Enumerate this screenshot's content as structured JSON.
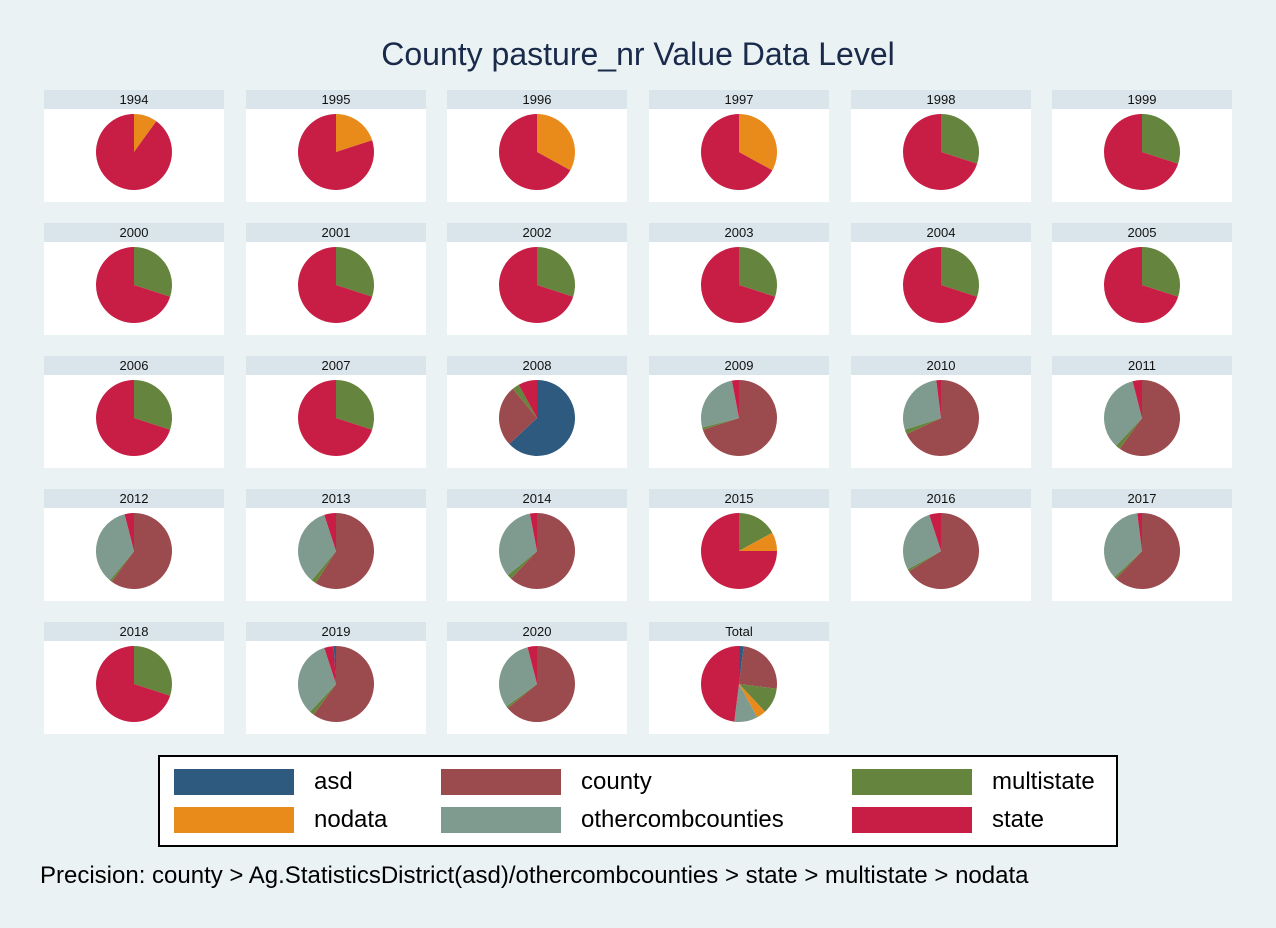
{
  "title": "County pasture_nr Value Data Level",
  "note": "Precision: county > Ag.StatisticsDistrict(asd)/othercombcounties > state > multistate > nodata",
  "chart_data": {
    "type": "pie",
    "title": "County pasture_nr Value Data Level",
    "categories": [
      "asd",
      "county",
      "multistate",
      "nodata",
      "othercombcounties",
      "state"
    ],
    "colors": {
      "asd": "#2e5a80",
      "county": "#9b4a4d",
      "multistate": "#65843d",
      "nodata": "#e88b1b",
      "othercombcounties": "#7f9b8f",
      "state": "#c81e45"
    },
    "legend": {
      "position": "bottom",
      "items": [
        "asd",
        "county",
        "multistate",
        "nodata",
        "othercombcounties",
        "state"
      ]
    },
    "panels": [
      {
        "label": "1994",
        "slices": [
          {
            "category": "nodata",
            "value": 10
          },
          {
            "category": "state",
            "value": 90
          }
        ]
      },
      {
        "label": "1995",
        "slices": [
          {
            "category": "nodata",
            "value": 20
          },
          {
            "category": "state",
            "value": 80
          }
        ]
      },
      {
        "label": "1996",
        "slices": [
          {
            "category": "nodata",
            "value": 33
          },
          {
            "category": "state",
            "value": 67
          }
        ]
      },
      {
        "label": "1997",
        "slices": [
          {
            "category": "nodata",
            "value": 33
          },
          {
            "category": "state",
            "value": 67
          }
        ]
      },
      {
        "label": "1998",
        "slices": [
          {
            "category": "multistate",
            "value": 30
          },
          {
            "category": "state",
            "value": 70
          }
        ]
      },
      {
        "label": "1999",
        "slices": [
          {
            "category": "multistate",
            "value": 30
          },
          {
            "category": "state",
            "value": 70
          }
        ]
      },
      {
        "label": "2000",
        "slices": [
          {
            "category": "multistate",
            "value": 30
          },
          {
            "category": "state",
            "value": 70
          }
        ]
      },
      {
        "label": "2001",
        "slices": [
          {
            "category": "multistate",
            "value": 30
          },
          {
            "category": "state",
            "value": 70
          }
        ]
      },
      {
        "label": "2002",
        "slices": [
          {
            "category": "multistate",
            "value": 30
          },
          {
            "category": "state",
            "value": 70
          }
        ]
      },
      {
        "label": "2003",
        "slices": [
          {
            "category": "multistate",
            "value": 30
          },
          {
            "category": "state",
            "value": 70
          }
        ]
      },
      {
        "label": "2004",
        "slices": [
          {
            "category": "multistate",
            "value": 30
          },
          {
            "category": "state",
            "value": 70
          }
        ]
      },
      {
        "label": "2005",
        "slices": [
          {
            "category": "multistate",
            "value": 30
          },
          {
            "category": "state",
            "value": 70
          }
        ]
      },
      {
        "label": "2006",
        "slices": [
          {
            "category": "multistate",
            "value": 30
          },
          {
            "category": "state",
            "value": 70
          }
        ]
      },
      {
        "label": "2007",
        "slices": [
          {
            "category": "multistate",
            "value": 30
          },
          {
            "category": "state",
            "value": 70
          }
        ]
      },
      {
        "label": "2008",
        "slices": [
          {
            "category": "asd",
            "value": 63
          },
          {
            "category": "county",
            "value": 26
          },
          {
            "category": "multistate",
            "value": 3
          },
          {
            "category": "state",
            "value": 8
          }
        ]
      },
      {
        "label": "2009",
        "slices": [
          {
            "category": "county",
            "value": 70
          },
          {
            "category": "multistate",
            "value": 1
          },
          {
            "category": "othercombcounties",
            "value": 26
          },
          {
            "category": "state",
            "value": 3
          }
        ]
      },
      {
        "label": "2010",
        "slices": [
          {
            "category": "county",
            "value": 68
          },
          {
            "category": "multistate",
            "value": 2
          },
          {
            "category": "othercombcounties",
            "value": 28
          },
          {
            "category": "state",
            "value": 2
          }
        ]
      },
      {
        "label": "2011",
        "slices": [
          {
            "category": "county",
            "value": 60
          },
          {
            "category": "multistate",
            "value": 2
          },
          {
            "category": "othercombcounties",
            "value": 34
          },
          {
            "category": "state",
            "value": 4
          }
        ]
      },
      {
        "label": "2012",
        "slices": [
          {
            "category": "county",
            "value": 60
          },
          {
            "category": "multistate",
            "value": 1
          },
          {
            "category": "othercombcounties",
            "value": 35
          },
          {
            "category": "state",
            "value": 4
          }
        ]
      },
      {
        "label": "2013",
        "slices": [
          {
            "category": "county",
            "value": 59
          },
          {
            "category": "multistate",
            "value": 2
          },
          {
            "category": "othercombcounties",
            "value": 34
          },
          {
            "category": "state",
            "value": 5
          }
        ]
      },
      {
        "label": "2014",
        "slices": [
          {
            "category": "county",
            "value": 62
          },
          {
            "category": "multistate",
            "value": 2
          },
          {
            "category": "othercombcounties",
            "value": 33
          },
          {
            "category": "state",
            "value": 3
          }
        ]
      },
      {
        "label": "2015",
        "slices": [
          {
            "category": "multistate",
            "value": 17
          },
          {
            "category": "nodata",
            "value": 8
          },
          {
            "category": "state",
            "value": 75
          }
        ]
      },
      {
        "label": "2016",
        "slices": [
          {
            "category": "county",
            "value": 66
          },
          {
            "category": "multistate",
            "value": 1
          },
          {
            "category": "othercombcounties",
            "value": 28
          },
          {
            "category": "state",
            "value": 5
          }
        ]
      },
      {
        "label": "2017",
        "slices": [
          {
            "category": "county",
            "value": 62
          },
          {
            "category": "multistate",
            "value": 1
          },
          {
            "category": "othercombcounties",
            "value": 35
          },
          {
            "category": "state",
            "value": 2
          }
        ]
      },
      {
        "label": "2018",
        "slices": [
          {
            "category": "multistate",
            "value": 30
          },
          {
            "category": "state",
            "value": 70
          }
        ]
      },
      {
        "label": "2019",
        "slices": [
          {
            "category": "county",
            "value": 60
          },
          {
            "category": "multistate",
            "value": 2
          },
          {
            "category": "othercombcounties",
            "value": 33
          },
          {
            "category": "state",
            "value": 4
          },
          {
            "category": "asd",
            "value": 1
          }
        ]
      },
      {
        "label": "2020",
        "slices": [
          {
            "category": "county",
            "value": 64
          },
          {
            "category": "multistate",
            "value": 1
          },
          {
            "category": "othercombcounties",
            "value": 31
          },
          {
            "category": "state",
            "value": 4
          }
        ]
      },
      {
        "label": "Total",
        "slices": [
          {
            "category": "asd",
            "value": 2
          },
          {
            "category": "county",
            "value": 25
          },
          {
            "category": "multistate",
            "value": 11
          },
          {
            "category": "nodata",
            "value": 4
          },
          {
            "category": "othercombcounties",
            "value": 10
          },
          {
            "category": "state",
            "value": 48
          }
        ]
      }
    ]
  }
}
